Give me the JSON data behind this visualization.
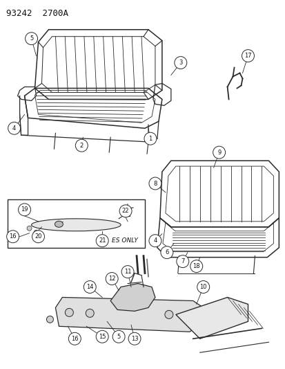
{
  "title": "93242  2700A",
  "bg_color": "#ffffff",
  "line_color": "#2a2a2a",
  "text_color": "#111111",
  "title_fontsize": 9,
  "label_fontsize": 6.5,
  "es_only_text": "ES ONLY",
  "figsize": [
    4.14,
    5.33
  ],
  "dpi": 100
}
